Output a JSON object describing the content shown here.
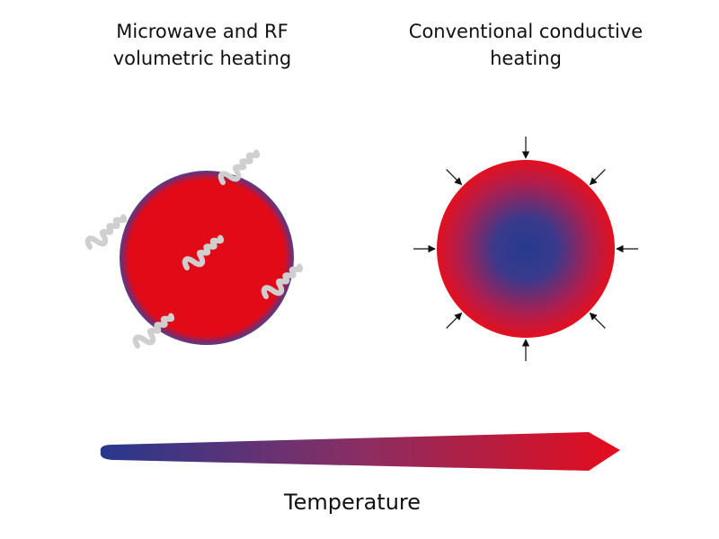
{
  "panels": [
    {
      "title": [
        "Microwave and RF",
        "volumetric heating"
      ]
    },
    {
      "title": [
        "Conventional conductive",
        "heating"
      ]
    }
  ],
  "legend": {
    "label": "Temperature"
  }
}
